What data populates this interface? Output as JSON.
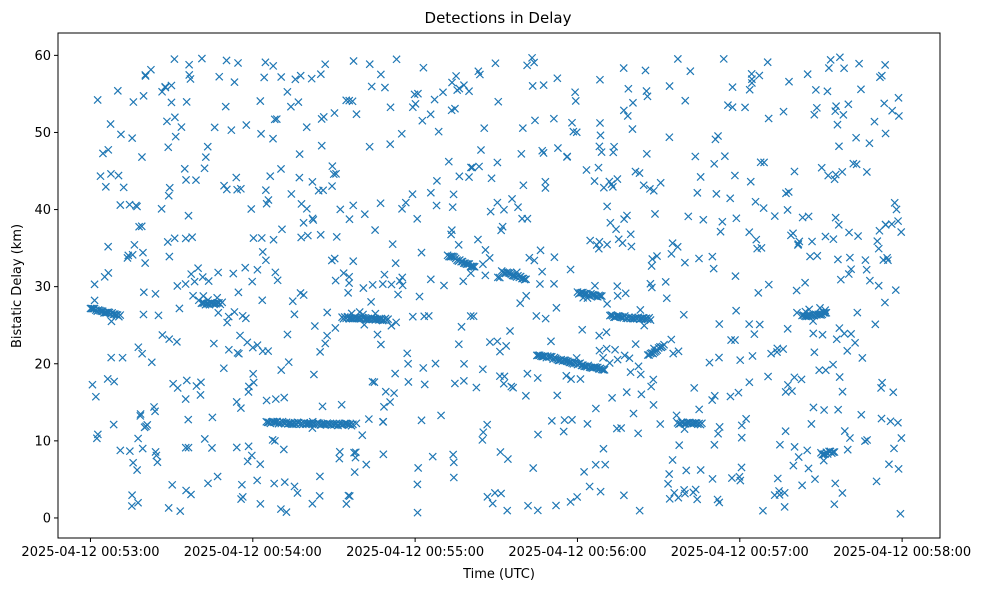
{
  "chart_data": {
    "type": "scatter",
    "title": "Detections in Delay",
    "xlabel": "Time (UTC)",
    "ylabel": "Bistatic Delay (km)",
    "x_range": [
      "2025-04-12 00:52:48",
      "2025-04-12 00:58:14"
    ],
    "y_range": [
      -2.6,
      62.9
    ],
    "x_ticks": [
      "2025-04-12 00:53:00",
      "2025-04-12 00:54:00",
      "2025-04-12 00:55:00",
      "2025-04-12 00:56:00",
      "2025-04-12 00:57:00",
      "2025-04-12 00:58:00"
    ],
    "y_ticks": [
      0,
      10,
      20,
      30,
      40,
      50,
      60
    ],
    "grid": false,
    "marker": "x",
    "color": "#1f77b4",
    "point_count": 1066,
    "series": [
      {
        "name": "",
        "tracks": [
          {
            "t": [
              "2025-04-12 00:53:00",
              "2025-04-12 00:53:11"
            ],
            "y": [
              27.2,
              26.2
            ]
          },
          {
            "t": [
              "2025-04-12 00:53:20",
              "2025-04-12 00:53:21"
            ],
            "y": [
              11.7,
              12.1
            ]
          },
          {
            "t": [
              "2025-04-12 00:53:41",
              "2025-04-12 00:53:48"
            ],
            "y": [
              27.8,
              27.8
            ]
          },
          {
            "t": [
              "2025-04-12 00:54:05",
              "2025-04-12 00:54:37"
            ],
            "y": [
              12.4,
              12.1
            ]
          },
          {
            "t": [
              "2025-04-12 00:54:33",
              "2025-04-12 00:54:50"
            ],
            "y": [
              26.0,
              25.7
            ]
          },
          {
            "t": [
              "2025-04-12 00:55:12",
              "2025-04-12 00:55:22"
            ],
            "y": [
              34.1,
              32.5
            ]
          },
          {
            "t": [
              "2025-04-12 00:55:32",
              "2025-04-12 00:55:41"
            ],
            "y": [
              32.0,
              31.0
            ]
          },
          {
            "t": [
              "2025-04-12 00:55:45",
              "2025-04-12 00:56:10"
            ],
            "y": [
              21.2,
              19.2
            ]
          },
          {
            "t": [
              "2025-04-12 00:56:00",
              "2025-04-12 00:56:09"
            ],
            "y": [
              29.2,
              28.7
            ]
          },
          {
            "t": [
              "2025-04-12 00:56:12",
              "2025-04-12 00:56:27"
            ],
            "y": [
              26.2,
              25.8
            ]
          },
          {
            "t": [
              "2025-04-12 00:56:26",
              "2025-04-12 00:56:32"
            ],
            "y": [
              21.0,
              22.4
            ]
          },
          {
            "t": [
              "2025-04-12 00:56:37",
              "2025-04-12 00:56:46"
            ],
            "y": [
              12.3,
              12.2
            ]
          },
          {
            "t": [
              "2025-04-12 00:57:23",
              "2025-04-12 00:57:32"
            ],
            "y": [
              26.2,
              26.5
            ]
          },
          {
            "t": [
              "2025-04-12 00:57:30",
              "2025-04-12 00:57:35"
            ],
            "y": [
              8.3,
              8.6
            ]
          }
        ],
        "background": {
          "count": 882,
          "t_range": [
            "2025-04-12 00:53:00",
            "2025-04-12 00:58:00"
          ],
          "y_range": [
            0.5,
            59.8
          ],
          "distribution": "uniform clutter"
        }
      }
    ]
  }
}
